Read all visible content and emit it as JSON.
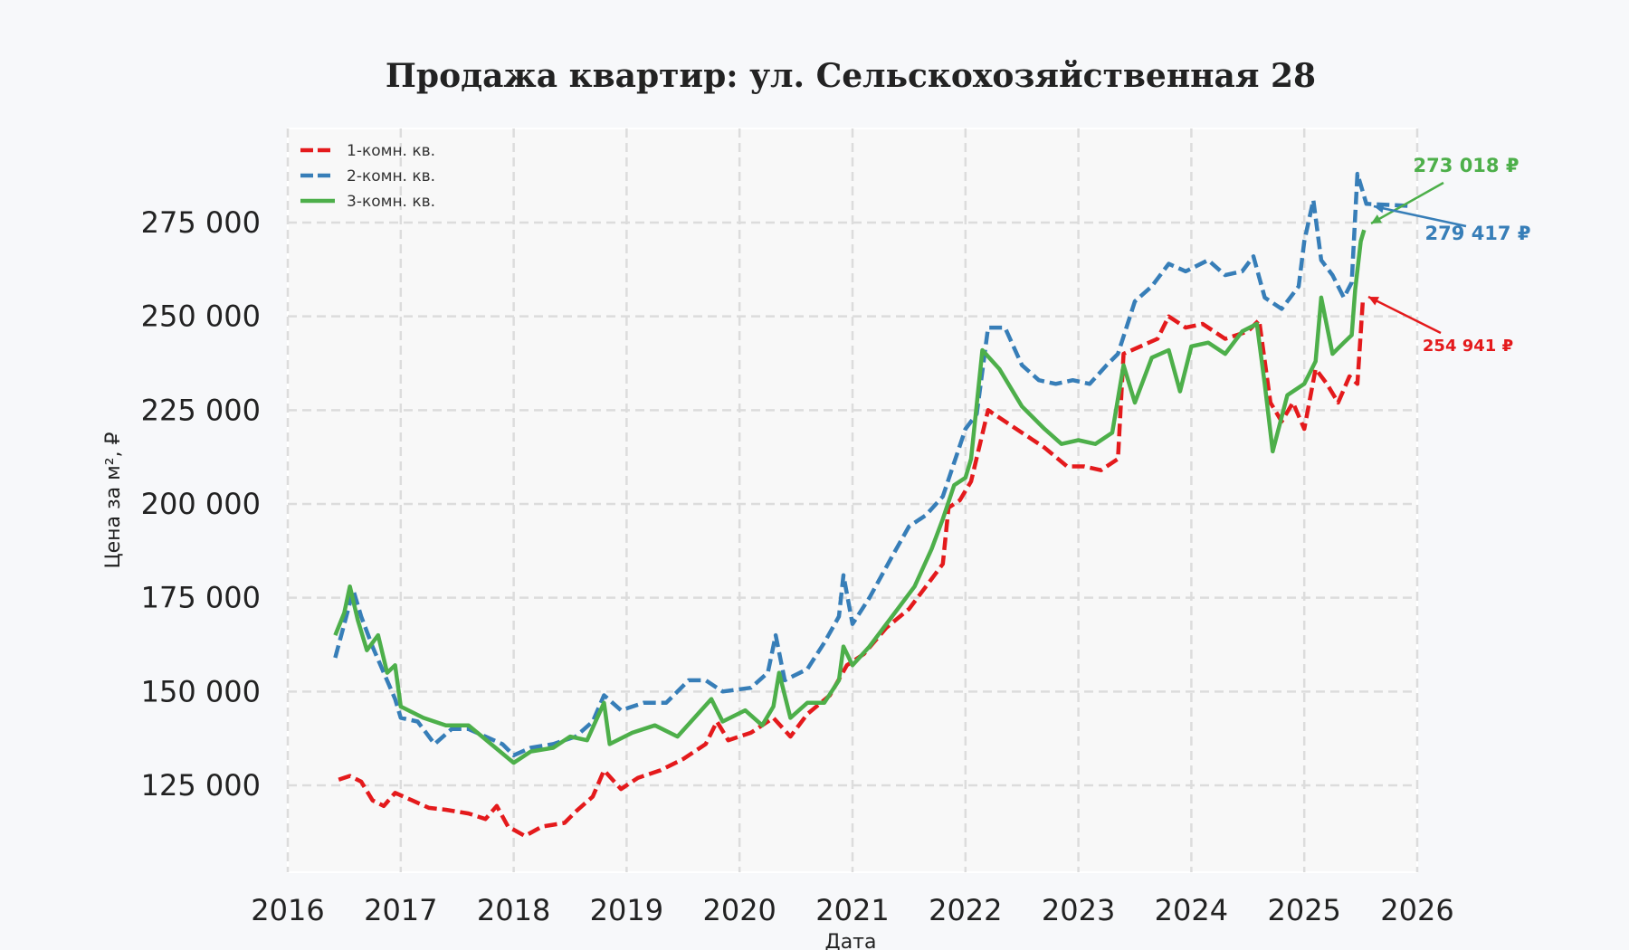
{
  "chart_data": {
    "type": "line",
    "title": "Продажа квартир: ул. Сельскохозяйственная 28",
    "xlabel": "Дата",
    "ylabel": "Цена за м², ₽",
    "xlim": [
      2016,
      2026
    ],
    "ylim": [
      102000,
      300000
    ],
    "x_ticks": [
      "2016",
      "2017",
      "2018",
      "2019",
      "2020",
      "2021",
      "2022",
      "2023",
      "2024",
      "2025",
      "2026"
    ],
    "y_ticks": [
      "125 000",
      "150 000",
      "175 000",
      "200 000",
      "225 000",
      "250 000",
      "275 000"
    ],
    "y_tick_values": [
      125000,
      150000,
      175000,
      200000,
      225000,
      250000,
      275000
    ],
    "grid": true,
    "legend_position": "upper left",
    "series": [
      {
        "name": "1-комн. кв.",
        "color": "#e41a1c",
        "style": "dashed, triangle markers",
        "points": [
          [
            2016.45,
            126500
          ],
          [
            2016.55,
            127500
          ],
          [
            2016.65,
            126000
          ],
          [
            2016.75,
            121000
          ],
          [
            2016.85,
            119500
          ],
          [
            2016.95,
            123000
          ],
          [
            2017.1,
            121000
          ],
          [
            2017.25,
            119000
          ],
          [
            2017.4,
            118500
          ],
          [
            2017.6,
            117500
          ],
          [
            2017.75,
            116000
          ],
          [
            2017.85,
            119500
          ],
          [
            2017.95,
            114000
          ],
          [
            2018.1,
            111500
          ],
          [
            2018.25,
            114000
          ],
          [
            2018.45,
            115000
          ],
          [
            2018.55,
            118000
          ],
          [
            2018.7,
            122000
          ],
          [
            2018.8,
            129000
          ],
          [
            2018.95,
            124000
          ],
          [
            2019.1,
            127000
          ],
          [
            2019.3,
            129000
          ],
          [
            2019.5,
            132000
          ],
          [
            2019.7,
            136000
          ],
          [
            2019.8,
            142000
          ],
          [
            2019.9,
            137000
          ],
          [
            2020.1,
            139000
          ],
          [
            2020.3,
            143000
          ],
          [
            2020.45,
            138000
          ],
          [
            2020.6,
            144000
          ],
          [
            2020.8,
            149000
          ],
          [
            2020.95,
            157000
          ],
          [
            2021.1,
            160000
          ],
          [
            2021.3,
            167000
          ],
          [
            2021.5,
            172000
          ],
          [
            2021.7,
            180000
          ],
          [
            2021.8,
            184000
          ],
          [
            2021.85,
            199000
          ],
          [
            2021.95,
            201000
          ],
          [
            2022.05,
            206000
          ],
          [
            2022.2,
            225000
          ],
          [
            2022.35,
            222000
          ],
          [
            2022.5,
            219000
          ],
          [
            2022.7,
            215000
          ],
          [
            2022.9,
            210000
          ],
          [
            2023.05,
            210000
          ],
          [
            2023.2,
            209000
          ],
          [
            2023.35,
            212000
          ],
          [
            2023.4,
            240000
          ],
          [
            2023.55,
            242000
          ],
          [
            2023.7,
            244000
          ],
          [
            2023.8,
            250000
          ],
          [
            2023.95,
            247000
          ],
          [
            2024.1,
            248000
          ],
          [
            2024.3,
            244000
          ],
          [
            2024.5,
            246000
          ],
          [
            2024.6,
            249000
          ],
          [
            2024.7,
            227000
          ],
          [
            2024.8,
            222000
          ],
          [
            2024.9,
            227000
          ],
          [
            2025.0,
            220000
          ],
          [
            2025.1,
            236000
          ],
          [
            2025.2,
            232000
          ],
          [
            2025.3,
            227000
          ],
          [
            2025.4,
            234000
          ],
          [
            2025.47,
            232000
          ],
          [
            2025.52,
            254941
          ]
        ]
      },
      {
        "name": "2-комн. кв.",
        "color": "#377eb8",
        "style": "dashed, circle markers",
        "points": [
          [
            2016.42,
            159000
          ],
          [
            2016.5,
            168000
          ],
          [
            2016.58,
            177000
          ],
          [
            2016.65,
            170000
          ],
          [
            2016.75,
            162000
          ],
          [
            2016.85,
            155000
          ],
          [
            2016.95,
            148000
          ],
          [
            2017.0,
            143000
          ],
          [
            2017.15,
            142000
          ],
          [
            2017.3,
            136000
          ],
          [
            2017.45,
            140000
          ],
          [
            2017.6,
            140000
          ],
          [
            2017.75,
            138000
          ],
          [
            2017.9,
            136000
          ],
          [
            2018.0,
            133000
          ],
          [
            2018.15,
            135000
          ],
          [
            2018.35,
            136000
          ],
          [
            2018.55,
            138000
          ],
          [
            2018.7,
            142000
          ],
          [
            2018.8,
            149000
          ],
          [
            2018.95,
            145000
          ],
          [
            2019.15,
            147000
          ],
          [
            2019.35,
            147000
          ],
          [
            2019.55,
            153000
          ],
          [
            2019.7,
            153000
          ],
          [
            2019.85,
            150000
          ],
          [
            2020.1,
            151000
          ],
          [
            2020.25,
            155000
          ],
          [
            2020.32,
            165000
          ],
          [
            2020.4,
            153000
          ],
          [
            2020.6,
            156000
          ],
          [
            2020.75,
            163000
          ],
          [
            2020.88,
            170000
          ],
          [
            2020.92,
            181000
          ],
          [
            2021.0,
            168000
          ],
          [
            2021.15,
            175000
          ],
          [
            2021.35,
            186000
          ],
          [
            2021.5,
            194000
          ],
          [
            2021.65,
            197000
          ],
          [
            2021.8,
            202000
          ],
          [
            2021.9,
            211000
          ],
          [
            2022.0,
            220000
          ],
          [
            2022.1,
            224000
          ],
          [
            2022.2,
            247000
          ],
          [
            2022.35,
            247000
          ],
          [
            2022.5,
            237000
          ],
          [
            2022.65,
            233000
          ],
          [
            2022.8,
            232000
          ],
          [
            2022.95,
            233000
          ],
          [
            2023.1,
            232000
          ],
          [
            2023.25,
            237000
          ],
          [
            2023.35,
            240000
          ],
          [
            2023.5,
            254000
          ],
          [
            2023.65,
            258000
          ],
          [
            2023.8,
            264000
          ],
          [
            2023.95,
            262000
          ],
          [
            2024.15,
            265000
          ],
          [
            2024.3,
            261000
          ],
          [
            2024.45,
            262000
          ],
          [
            2024.55,
            266000
          ],
          [
            2024.65,
            255000
          ],
          [
            2024.8,
            252000
          ],
          [
            2024.95,
            258000
          ],
          [
            2025.0,
            270000
          ],
          [
            2025.08,
            281000
          ],
          [
            2025.15,
            265000
          ],
          [
            2025.25,
            261000
          ],
          [
            2025.35,
            255000
          ],
          [
            2025.42,
            259000
          ],
          [
            2025.47,
            288000
          ],
          [
            2025.52,
            283000
          ],
          [
            2025.55,
            280000
          ],
          [
            2025.95,
            279417
          ]
        ]
      },
      {
        "name": "3-комн. кв.",
        "color": "#4daf4a",
        "style": "solid",
        "points": [
          [
            2016.42,
            165000
          ],
          [
            2016.5,
            171000
          ],
          [
            2016.55,
            178000
          ],
          [
            2016.62,
            169000
          ],
          [
            2016.7,
            161000
          ],
          [
            2016.8,
            165000
          ],
          [
            2016.88,
            155000
          ],
          [
            2016.95,
            157000
          ],
          [
            2017.0,
            146000
          ],
          [
            2017.2,
            143000
          ],
          [
            2017.4,
            141000
          ],
          [
            2017.6,
            141000
          ],
          [
            2017.8,
            136000
          ],
          [
            2018.0,
            131000
          ],
          [
            2018.15,
            134000
          ],
          [
            2018.35,
            135000
          ],
          [
            2018.5,
            138000
          ],
          [
            2018.65,
            137000
          ],
          [
            2018.8,
            147000
          ],
          [
            2018.85,
            136000
          ],
          [
            2019.05,
            139000
          ],
          [
            2019.25,
            141000
          ],
          [
            2019.45,
            138000
          ],
          [
            2019.6,
            143000
          ],
          [
            2019.75,
            148000
          ],
          [
            2019.85,
            142000
          ],
          [
            2020.05,
            145000
          ],
          [
            2020.2,
            141000
          ],
          [
            2020.3,
            146000
          ],
          [
            2020.35,
            155000
          ],
          [
            2020.45,
            143000
          ],
          [
            2020.6,
            147000
          ],
          [
            2020.75,
            147000
          ],
          [
            2020.88,
            153000
          ],
          [
            2020.92,
            162000
          ],
          [
            2021.0,
            157000
          ],
          [
            2021.15,
            162000
          ],
          [
            2021.35,
            170000
          ],
          [
            2021.55,
            178000
          ],
          [
            2021.7,
            188000
          ],
          [
            2021.8,
            196000
          ],
          [
            2021.9,
            205000
          ],
          [
            2022.0,
            207000
          ],
          [
            2022.05,
            212000
          ],
          [
            2022.15,
            241000
          ],
          [
            2022.3,
            236000
          ],
          [
            2022.5,
            226000
          ],
          [
            2022.7,
            220000
          ],
          [
            2022.85,
            216000
          ],
          [
            2023.0,
            217000
          ],
          [
            2023.15,
            216000
          ],
          [
            2023.3,
            219000
          ],
          [
            2023.4,
            237000
          ],
          [
            2023.5,
            227000
          ],
          [
            2023.65,
            239000
          ],
          [
            2023.8,
            241000
          ],
          [
            2023.9,
            230000
          ],
          [
            2024.0,
            242000
          ],
          [
            2024.15,
            243000
          ],
          [
            2024.3,
            240000
          ],
          [
            2024.45,
            246000
          ],
          [
            2024.58,
            248000
          ],
          [
            2024.65,
            232000
          ],
          [
            2024.72,
            214000
          ],
          [
            2024.85,
            229000
          ],
          [
            2025.0,
            232000
          ],
          [
            2025.1,
            238000
          ],
          [
            2025.15,
            255000
          ],
          [
            2025.25,
            240000
          ],
          [
            2025.35,
            243000
          ],
          [
            2025.42,
            245000
          ],
          [
            2025.45,
            257000
          ],
          [
            2025.5,
            270000
          ],
          [
            2025.53,
            273018
          ]
        ]
      }
    ],
    "annotations": [
      {
        "label": "273 018 ₽",
        "color": "#4daf4a",
        "x": 2025.53,
        "y": 273018
      },
      {
        "label": "279 417 ₽",
        "color": "#377eb8",
        "x": 2025.55,
        "y": 279417
      },
      {
        "label": "254 941 ₽",
        "color": "#e41a1c",
        "x": 2025.52,
        "y": 254941
      }
    ]
  },
  "legend": {
    "items": [
      {
        "label": "1-комн. кв.",
        "color": "#e41a1c"
      },
      {
        "label": "2-комн. кв.",
        "color": "#377eb8"
      },
      {
        "label": "3-комн. кв.",
        "color": "#4daf4a"
      }
    ]
  }
}
